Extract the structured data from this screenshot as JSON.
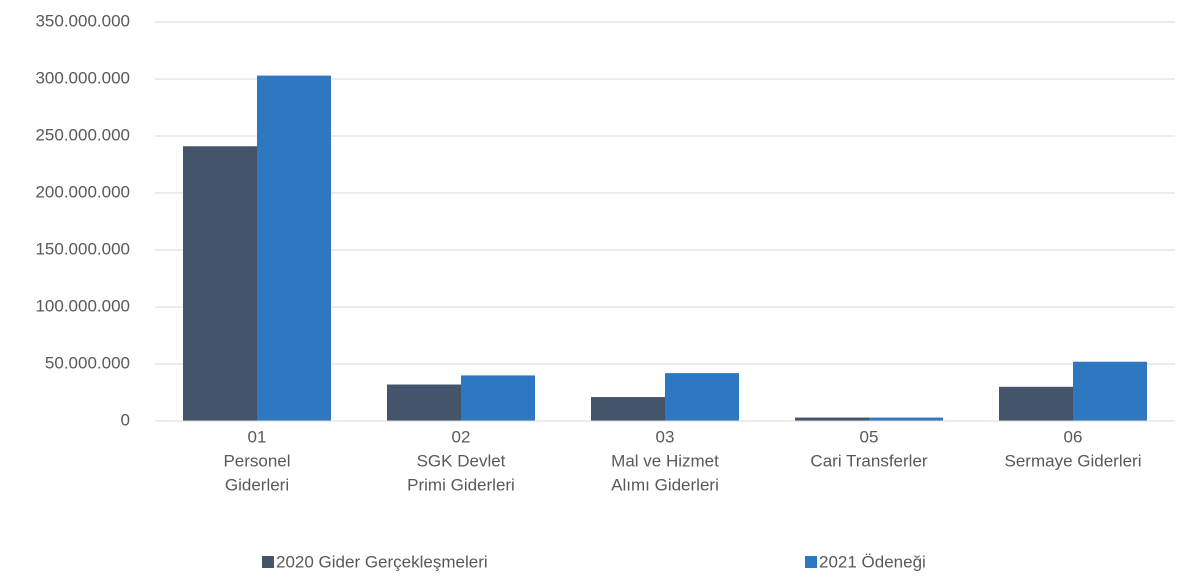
{
  "chart_data": {
    "type": "bar",
    "categories": [
      [
        "01",
        "Personel",
        "Giderleri"
      ],
      [
        "02",
        "SGK Devlet",
        "Primi Giderleri"
      ],
      [
        "03",
        "Mal ve Hizmet",
        "Alımı Giderleri"
      ],
      [
        "05",
        "Cari Transferler"
      ],
      [
        "06",
        "Sermaye Giderleri"
      ]
    ],
    "series": [
      {
        "name": "2020 Gider Gerçekleşmeleri",
        "color": "#44546a",
        "values": [
          241000000,
          32000000,
          21000000,
          3000000,
          30000000
        ]
      },
      {
        "name": "2021 Ödeneği",
        "color": "#2e78c2",
        "values": [
          303000000,
          40000000,
          42000000,
          3000000,
          52000000
        ]
      }
    ],
    "ylim": [
      0,
      350000000
    ],
    "yticks": [
      0,
      {
        "value": 50000000,
        "label": "50.000.000"
      },
      {
        "value": 100000000,
        "label": "100.000.000"
      },
      {
        "value": 150000000,
        "label": "150.000.000"
      },
      {
        "value": 200000000,
        "label": "200.000.000"
      },
      {
        "value": 250000000,
        "label": "250.000.000"
      },
      {
        "value": 300000000,
        "label": "300.000.000"
      },
      {
        "value": 350000000,
        "label": "350.000.000"
      }
    ],
    "grid": true,
    "legend": "bottom"
  }
}
